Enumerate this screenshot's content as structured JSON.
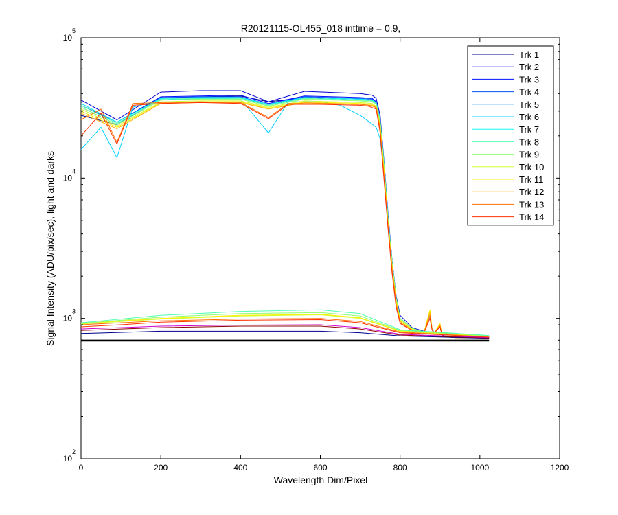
{
  "chart_data": {
    "type": "line",
    "title": "R20121115-OL455_018 inttime = 0.9,",
    "xlabel": "Wavelength Dim/Pixel",
    "ylabel": "Signal Intensity (ADU/pix/sec), light and darks",
    "xlim": [
      0,
      1200
    ],
    "ylim": [
      100,
      100000
    ],
    "yscale": "log",
    "grid": false,
    "legend_position": "top-right",
    "x_ticks": [
      0,
      200,
      400,
      600,
      800,
      1000,
      1200
    ],
    "y_ticks": [
      {
        "value": 100,
        "base": "10",
        "exp": "2"
      },
      {
        "value": 1000,
        "base": "10",
        "exp": "3"
      },
      {
        "value": 10000,
        "base": "10",
        "exp": "4"
      },
      {
        "value": 100000,
        "base": "10",
        "exp": "5"
      }
    ],
    "series": [
      {
        "name": "Trk 1",
        "color": "#00008F",
        "x": [
          0,
          90,
          200,
          300,
          400,
          470,
          560,
          700,
          730,
          740,
          750,
          760,
          770,
          780,
          790,
          800,
          830,
          860,
          875,
          880,
          885,
          900,
          905,
          910,
          940,
          1023
        ],
        "y": [
          28000,
          24000,
          37000,
          38000,
          38500,
          35000,
          37500,
          36500,
          36000,
          34000,
          25000,
          12000,
          5000,
          2500,
          1400,
          1000,
          850,
          800,
          1050,
          850,
          780,
          880,
          760,
          740,
          730,
          730
        ]
      },
      {
        "name": "Trk 2",
        "color": "#0000CF",
        "x": [
          0,
          90,
          200,
          300,
          400,
          470,
          560,
          700,
          730,
          740,
          750,
          760,
          770,
          780,
          790,
          800,
          830,
          860,
          875,
          880,
          885,
          900,
          905,
          910,
          940,
          1023
        ],
        "y": [
          36000,
          26000,
          41000,
          42000,
          42000,
          35000,
          41500,
          40000,
          39000,
          37000,
          28000,
          13000,
          5500,
          2600,
          1450,
          1050,
          860,
          810,
          1050,
          860,
          790,
          890,
          770,
          750,
          740,
          740
        ]
      },
      {
        "name": "Trk 3",
        "color": "#0010FF",
        "x": [
          0,
          90,
          200,
          300,
          400,
          470,
          560,
          700,
          730,
          740,
          750,
          760,
          770,
          780,
          790,
          800,
          830,
          860,
          875,
          880,
          885,
          900,
          905,
          910,
          940,
          1023
        ],
        "y": [
          34000,
          25000,
          38000,
          38500,
          39000,
          34000,
          38500,
          37500,
          37000,
          35000,
          26000,
          12500,
          5200,
          2500,
          1400,
          1000,
          850,
          800,
          1050,
          850,
          780,
          880,
          760,
          740,
          730,
          730
        ]
      },
      {
        "name": "Trk 4",
        "color": "#0050FF",
        "x": [
          0,
          90,
          200,
          300,
          400,
          470,
          560,
          700,
          730,
          740,
          750,
          760,
          770,
          780,
          790,
          800,
          830,
          860,
          875,
          880,
          885,
          900,
          905,
          910,
          940,
          1023
        ],
        "y": [
          33000,
          25000,
          37500,
          38000,
          38000,
          33500,
          38000,
          37000,
          36500,
          34500,
          26000,
          12500,
          5200,
          2500,
          1400,
          1000,
          850,
          800,
          1050,
          850,
          780,
          880,
          760,
          740,
          730,
          730
        ]
      },
      {
        "name": "Trk 5",
        "color": "#0090FF",
        "x": [
          0,
          90,
          200,
          300,
          400,
          470,
          560,
          700,
          730,
          740,
          750,
          760,
          770,
          780,
          790,
          800,
          830,
          860,
          875,
          880,
          885,
          900,
          905,
          910,
          940,
          1023
        ],
        "y": [
          32000,
          24000,
          37000,
          37500,
          37500,
          33000,
          37500,
          36500,
          36000,
          34000,
          25500,
          12000,
          5000,
          2500,
          1400,
          1000,
          850,
          800,
          1050,
          850,
          780,
          880,
          760,
          740,
          730,
          730
        ]
      },
      {
        "name": "Trk 6",
        "color": "#00CFFF",
        "x": [
          0,
          50,
          90,
          130,
          200,
          300,
          400,
          470,
          520,
          600,
          650,
          700,
          720,
          740,
          750,
          760,
          770,
          780,
          790,
          800,
          830,
          860,
          875,
          880,
          885,
          900,
          905,
          910,
          940,
          1023
        ],
        "y": [
          16000,
          23000,
          14000,
          32000,
          36000,
          37000,
          36500,
          21000,
          35000,
          35000,
          33000,
          28000,
          25500,
          23000,
          19000,
          11000,
          5000,
          2500,
          1400,
          1000,
          850,
          800,
          1050,
          850,
          780,
          880,
          760,
          740,
          730,
          730
        ]
      },
      {
        "name": "Trk 7",
        "color": "#10FFEF",
        "x": [
          0,
          90,
          200,
          300,
          400,
          470,
          560,
          700,
          730,
          740,
          750,
          760,
          770,
          780,
          790,
          800,
          830,
          860,
          875,
          880,
          885,
          900,
          905,
          910,
          940,
          1023
        ],
        "y": [
          34000,
          25000,
          37000,
          37500,
          37500,
          33500,
          37500,
          36500,
          36000,
          34500,
          26000,
          12500,
          5200,
          2500,
          1400,
          1000,
          850,
          800,
          1050,
          850,
          780,
          880,
          760,
          740,
          730,
          730
        ]
      },
      {
        "name": "Trk 8",
        "color": "#50FFAF",
        "x": [
          0,
          90,
          200,
          300,
          400,
          470,
          560,
          700,
          730,
          740,
          750,
          760,
          770,
          780,
          790,
          800,
          830,
          860,
          875,
          880,
          885,
          900,
          905,
          910,
          940,
          1023
        ],
        "y": [
          33000,
          24500,
          36500,
          37000,
          37000,
          33000,
          37000,
          36000,
          35500,
          34000,
          25500,
          12000,
          5000,
          2500,
          1400,
          1000,
          850,
          800,
          1100,
          850,
          780,
          900,
          760,
          740,
          730,
          730
        ]
      },
      {
        "name": "Trk 9",
        "color": "#90FF6F",
        "x": [
          0,
          90,
          200,
          300,
          400,
          470,
          560,
          700,
          730,
          740,
          750,
          760,
          770,
          780,
          790,
          800,
          830,
          860,
          875,
          880,
          885,
          900,
          905,
          910,
          940,
          1023
        ],
        "y": [
          32000,
          24000,
          36000,
          36500,
          36500,
          32500,
          36500,
          35500,
          35000,
          33500,
          25000,
          12000,
          5000,
          2500,
          1400,
          1000,
          850,
          800,
          1100,
          850,
          780,
          900,
          760,
          740,
          730,
          730
        ]
      },
      {
        "name": "Trk 10",
        "color": "#CFFF30",
        "x": [
          0,
          90,
          200,
          300,
          400,
          470,
          560,
          700,
          730,
          740,
          750,
          760,
          770,
          780,
          790,
          800,
          830,
          860,
          875,
          880,
          885,
          900,
          905,
          910,
          940,
          1023
        ],
        "y": [
          31000,
          23500,
          35000,
          35500,
          35500,
          32000,
          35500,
          34500,
          34000,
          32500,
          24000,
          11500,
          4800,
          2400,
          1350,
          980,
          840,
          800,
          1150,
          850,
          780,
          920,
          760,
          740,
          730,
          730
        ]
      },
      {
        "name": "Trk 11",
        "color": "#FFEF00",
        "x": [
          0,
          90,
          200,
          300,
          400,
          470,
          560,
          700,
          730,
          740,
          750,
          760,
          770,
          780,
          790,
          800,
          830,
          860,
          875,
          880,
          885,
          900,
          905,
          910,
          940,
          1023
        ],
        "y": [
          30000,
          23000,
          34500,
          35000,
          35000,
          31500,
          35000,
          34000,
          33500,
          32000,
          23500,
          11000,
          4700,
          2300,
          1300,
          960,
          830,
          790,
          1150,
          840,
          780,
          920,
          760,
          740,
          730,
          730
        ]
      },
      {
        "name": "Trk 12",
        "color": "#FFB000",
        "x": [
          0,
          90,
          200,
          300,
          400,
          470,
          560,
          700,
          730,
          740,
          750,
          760,
          770,
          780,
          790,
          800,
          830,
          860,
          875,
          880,
          885,
          900,
          905,
          910,
          940,
          1023
        ],
        "y": [
          29000,
          22500,
          34000,
          34500,
          34500,
          31000,
          34500,
          33500,
          33000,
          31500,
          23000,
          10500,
          4600,
          2300,
          1300,
          950,
          830,
          790,
          1100,
          840,
          780,
          900,
          760,
          740,
          730,
          730
        ]
      },
      {
        "name": "Trk 13",
        "color": "#FF7000",
        "x": [
          0,
          50,
          90,
          130,
          200,
          300,
          400,
          470,
          520,
          600,
          700,
          720,
          740,
          750,
          760,
          770,
          780,
          790,
          800,
          830,
          860,
          875,
          880,
          885,
          900,
          905,
          910,
          940,
          1023
        ],
        "y": [
          26000,
          31000,
          18000,
          34000,
          34500,
          35000,
          34500,
          27000,
          34000,
          34000,
          33500,
          33000,
          32000,
          22000,
          10000,
          4500,
          2200,
          1250,
          930,
          820,
          790,
          1050,
          840,
          780,
          880,
          760,
          740,
          730,
          730
        ]
      },
      {
        "name": "Trk 14",
        "color": "#FF3000",
        "x": [
          0,
          50,
          90,
          130,
          200,
          300,
          400,
          470,
          520,
          600,
          700,
          720,
          740,
          750,
          760,
          770,
          780,
          790,
          800,
          830,
          860,
          875,
          880,
          885,
          900,
          905,
          910,
          940,
          1023
        ],
        "y": [
          20000,
          29000,
          17500,
          33000,
          34000,
          34500,
          34000,
          26500,
          33500,
          33500,
          33000,
          32500,
          31000,
          21000,
          9500,
          4300,
          2100,
          1200,
          920,
          820,
          790,
          1000,
          830,
          780,
          870,
          760,
          740,
          730,
          730
        ]
      },
      {
        "name": "",
        "color": "#00008F",
        "x": [
          0,
          200,
          400,
          600,
          700,
          800,
          1023
        ],
        "y": [
          780,
          810,
          810,
          810,
          790,
          750,
          720
        ]
      },
      {
        "name": "",
        "color": "#8F0000",
        "x": [
          0,
          100,
          200,
          400,
          600,
          700,
          800,
          1023
        ],
        "y": [
          820,
          840,
          860,
          880,
          880,
          840,
          760,
          725
        ]
      },
      {
        "name": "",
        "color": "#CF00CF",
        "x": [
          0,
          100,
          200,
          400,
          600,
          700,
          800,
          1023
        ],
        "y": [
          840,
          860,
          880,
          895,
          900,
          860,
          770,
          730
        ]
      },
      {
        "name": "",
        "color": "#FF3000",
        "x": [
          0,
          100,
          200,
          400,
          600,
          700,
          800,
          1023
        ],
        "y": [
          870,
          900,
          940,
          970,
          980,
          930,
          790,
          735
        ]
      },
      {
        "name": "",
        "color": "#FF7000",
        "x": [
          0,
          100,
          200,
          400,
          600,
          700,
          800,
          1023
        ],
        "y": [
          900,
          930,
          960,
          990,
          1000,
          950,
          800,
          740
        ]
      },
      {
        "name": "",
        "color": "#CFFF30",
        "x": [
          0,
          100,
          200,
          400,
          600,
          700,
          800,
          1023
        ],
        "y": [
          910,
          950,
          990,
          1040,
          1060,
          1000,
          810,
          745
        ]
      },
      {
        "name": "",
        "color": "#FFEF00",
        "x": [
          0,
          100,
          200,
          400,
          600,
          700,
          800,
          1023
        ],
        "y": [
          920,
          960,
          1000,
          1050,
          1070,
          1010,
          815,
          748
        ]
      },
      {
        "name": "",
        "color": "#90FF6F",
        "x": [
          0,
          100,
          200,
          400,
          600,
          700,
          800,
          1023
        ],
        "y": [
          920,
          970,
          1020,
          1080,
          1100,
          1040,
          820,
          750
        ]
      },
      {
        "name": "",
        "color": "#50FFAF",
        "x": [
          0,
          100,
          200,
          400,
          600,
          700,
          800,
          1023
        ],
        "y": [
          930,
          990,
          1050,
          1120,
          1150,
          1080,
          830,
          755
        ]
      },
      {
        "name": "",
        "color": "#000000",
        "x": [
          0,
          1023
        ],
        "y": [
          700,
          700
        ]
      },
      {
        "name": "",
        "color": "#000000",
        "x": [
          0,
          1023
        ],
        "y": [
          690,
          690
        ]
      },
      {
        "name": "",
        "color": "#000000",
        "x": [
          0,
          1023
        ],
        "y": [
          695,
          695
        ]
      }
    ]
  }
}
